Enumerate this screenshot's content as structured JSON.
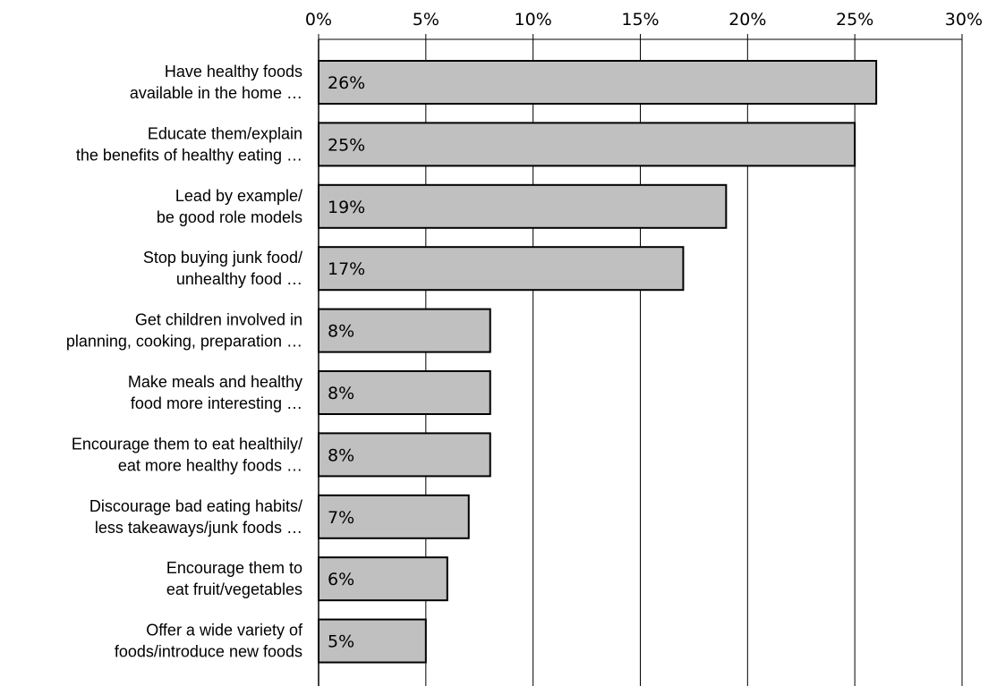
{
  "chart_data": {
    "type": "bar",
    "orientation": "horizontal",
    "title": "",
    "xlabel": "",
    "ylabel": "",
    "xlim": [
      0,
      30
    ],
    "ticks": [
      "0%",
      "5%",
      "10%",
      "15%",
      "20%",
      "25%",
      "30%"
    ],
    "tick_values": [
      0,
      5,
      10,
      15,
      20,
      25,
      30
    ],
    "x_axis_position": "top",
    "grid": true,
    "bar_color": "#c0c0c0",
    "categories": [
      [
        "Have healthy foods",
        "available in the home …"
      ],
      [
        "Educate them/explain",
        "the benefits of healthy eating …"
      ],
      [
        "Lead by example/",
        "be good role models"
      ],
      [
        "Stop buying junk food/",
        "unhealthy food …"
      ],
      [
        "Get children involved in",
        "planning, cooking, preparation …"
      ],
      [
        "Make meals and healthy",
        "food more interesting …"
      ],
      [
        "Encourage them to eat healthily/",
        "eat more healthy foods …"
      ],
      [
        "Discourage bad eating habits/",
        "less takeaways/junk foods …"
      ],
      [
        "Encourage them to",
        "eat fruit/vegetables"
      ],
      [
        "Offer a wide variety of",
        "foods/introduce new foods"
      ]
    ],
    "values": [
      26,
      25,
      19,
      17,
      8,
      8,
      8,
      7,
      6,
      5
    ],
    "data_labels": [
      "26%",
      "25%",
      "19%",
      "17%",
      "8%",
      "8%",
      "8%",
      "7%",
      "6%",
      "5%"
    ]
  }
}
